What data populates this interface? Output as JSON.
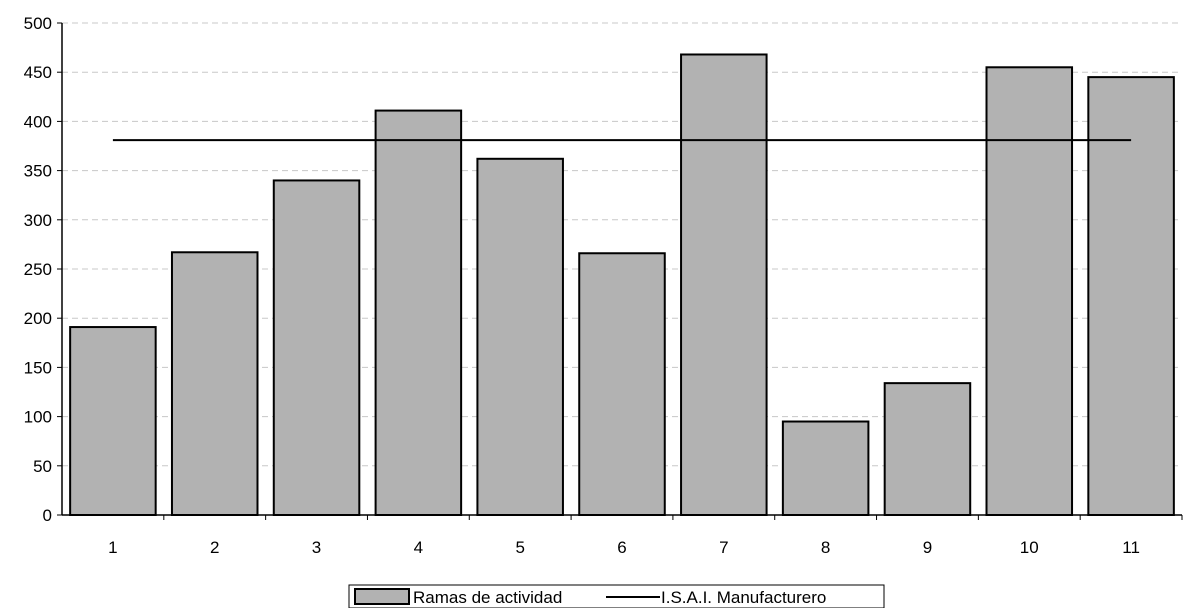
{
  "chart_data": {
    "type": "bar",
    "categories": [
      "1",
      "2",
      "3",
      "4",
      "5",
      "6",
      "7",
      "8",
      "9",
      "10",
      "11"
    ],
    "series": [
      {
        "name": "Ramas de actividad",
        "type": "bar",
        "values": [
          191,
          267,
          340,
          411,
          362,
          266,
          468,
          95,
          134,
          455,
          445
        ],
        "color": "#b2b2b2"
      },
      {
        "name": "I.S.A.I. Manufacturero",
        "type": "line",
        "values": [
          381,
          381,
          381,
          381,
          381,
          381,
          381,
          381,
          381,
          381,
          381
        ],
        "color": "#000000"
      }
    ],
    "y_ticks": [
      "0",
      "50",
      "100",
      "150",
      "200",
      "250",
      "300",
      "350",
      "400",
      "450",
      "500"
    ],
    "ylim": [
      0,
      500
    ],
    "grid": "horizontal-dashed",
    "legend_position": "bottom-center",
    "title": "",
    "xlabel": "",
    "ylabel": ""
  }
}
